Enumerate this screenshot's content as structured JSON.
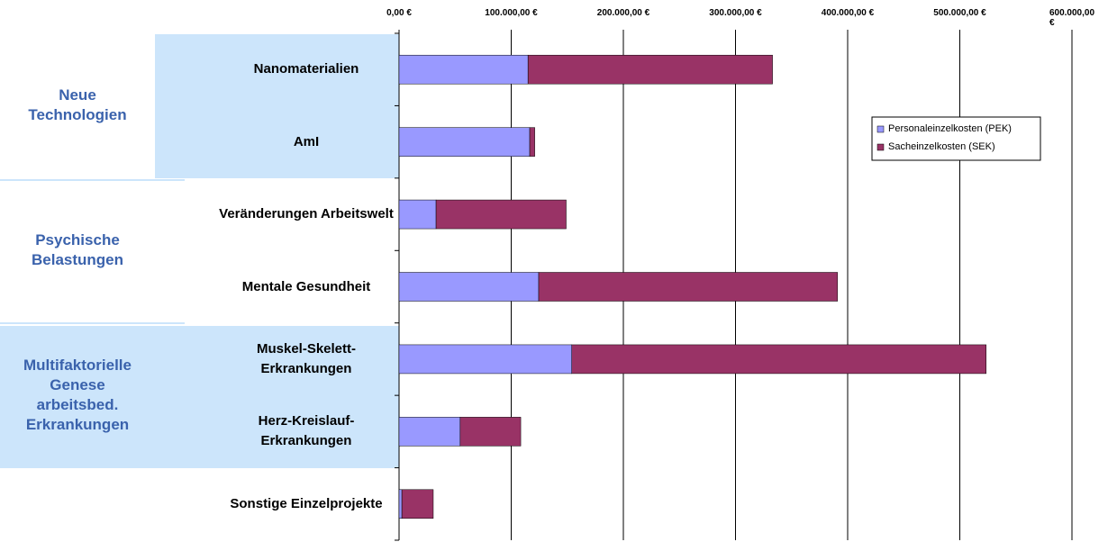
{
  "chart_data": {
    "type": "bar",
    "orientation": "horizontal",
    "stacked": true,
    "categories": [
      "Nanomaterialien",
      "AmI",
      "Veränderungen Arbeitswelt",
      "Mentale Gesundheit",
      "Muskel-Skelett-\nErkrankungen",
      "Herz-Kreislauf-\nErkrankungen",
      "Sonstige Einzelprojekte"
    ],
    "groups": [
      "Neue\nTechnologien",
      "Psychische\nBelastungen",
      "Multifaktorielle\nGenese\narbeitsbed.\nErkrankungen"
    ],
    "series": [
      {
        "name": "Personaleinzelkosten (PEK)",
        "color": "#9999ff",
        "values": [
          115000,
          116500,
          33000,
          124500,
          154000,
          54500,
          2500
        ]
      },
      {
        "name": "Sacheinzelkosten (SEK)",
        "color": "#993366",
        "values": [
          218000,
          4500,
          116000,
          266500,
          369500,
          54000,
          28000
        ]
      }
    ],
    "xlim": [
      0,
      600000
    ],
    "xticks": [
      {
        "value": 0,
        "label": "0,00 €"
      },
      {
        "value": 100000,
        "label": "100.000,00 €"
      },
      {
        "value": 200000,
        "label": "200.000,00 €"
      },
      {
        "value": 300000,
        "label": "300.000,00 €"
      },
      {
        "value": 400000,
        "label": "400.000,00 €"
      },
      {
        "value": 500000,
        "label": "500.000,00 €"
      },
      {
        "value": 600000,
        "label": "600.000,00 €"
      }
    ],
    "grid": true,
    "legend": "upper right"
  }
}
